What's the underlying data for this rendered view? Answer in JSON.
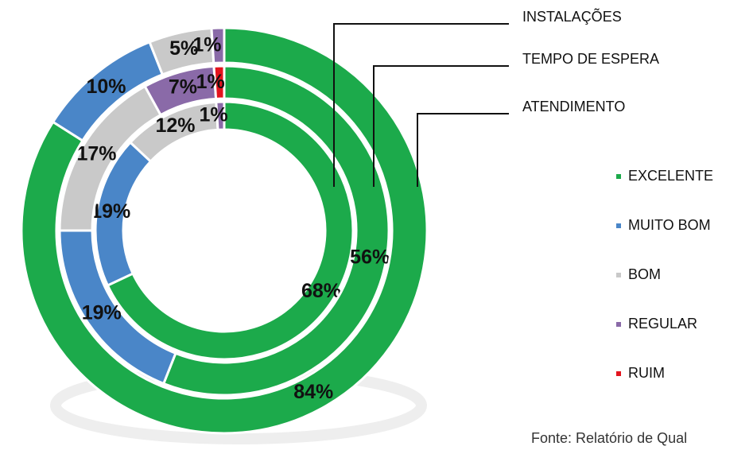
{
  "chart_data": {
    "type": "donut",
    "categories": [
      "INSTALAÇÕES",
      "TEMPO DE ESPERA",
      "ATENDIMENTO"
    ],
    "series": [
      {
        "name": "EXCELENTE",
        "color": "#1caa4b",
        "values": [
          68,
          56,
          84
        ],
        "value_labels": [
          "68%",
          "56%",
          "84%"
        ]
      },
      {
        "name": "MUITO BOM",
        "color": "#4a86c8",
        "values": [
          19,
          19,
          10
        ],
        "value_labels": [
          "19%",
          "19%",
          "10%"
        ]
      },
      {
        "name": "BOM",
        "color": "#c9c9c9",
        "values": [
          12,
          17,
          5
        ],
        "value_labels": [
          "12%",
          "17%",
          "5%"
        ]
      },
      {
        "name": "REGULAR",
        "color": "#8a6aa8",
        "values": [
          1,
          7,
          1
        ],
        "value_labels": [
          "1%",
          "7%",
          "1%"
        ]
      },
      {
        "name": "RUIM",
        "color": "#e3141e",
        "values": [
          0,
          1,
          0
        ],
        "value_labels": [
          null,
          "1%",
          null
        ]
      }
    ],
    "footnote": "Fonte: Relatório de Qual"
  }
}
